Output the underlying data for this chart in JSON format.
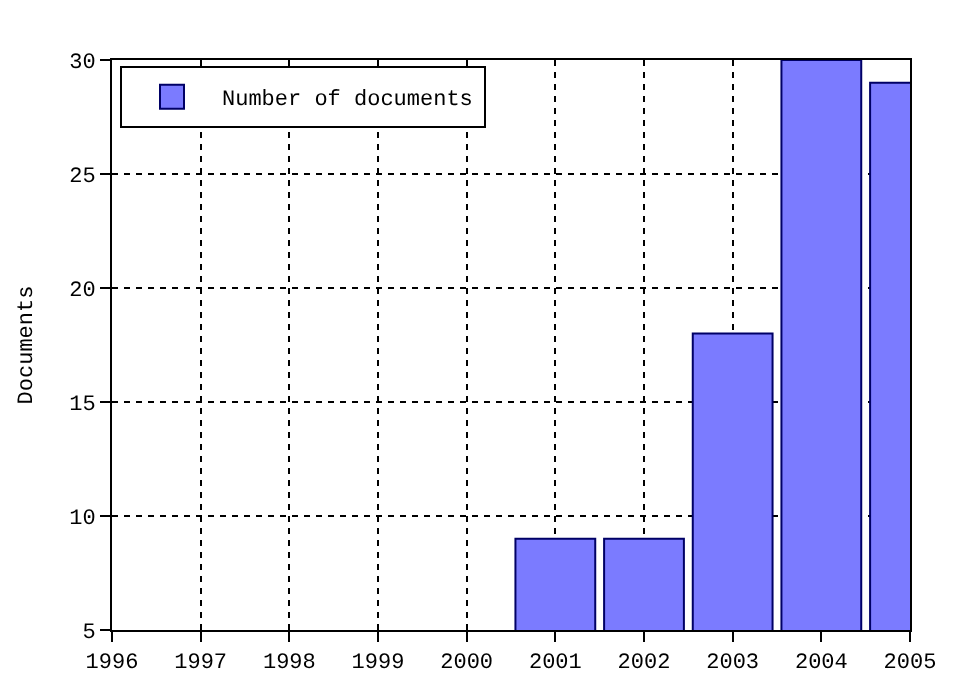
{
  "chart_data": {
    "type": "bar",
    "ylabel": "Documents",
    "x": [
      2001,
      2002,
      2003,
      2004,
      2005
    ],
    "series": [
      {
        "name": "Number of documents",
        "color": "#7b7bff",
        "values": [
          9,
          9,
          18,
          30,
          29
        ]
      }
    ],
    "xlim": [
      1996,
      2005
    ],
    "xticks": [
      1996,
      1997,
      1998,
      1999,
      2000,
      2001,
      2002,
      2003,
      2004,
      2005
    ],
    "ylim": [
      5,
      30
    ],
    "yticks": [
      5,
      10,
      15,
      20,
      25,
      30
    ],
    "grid": true,
    "legend": "top left",
    "line_style": "dotted"
  }
}
